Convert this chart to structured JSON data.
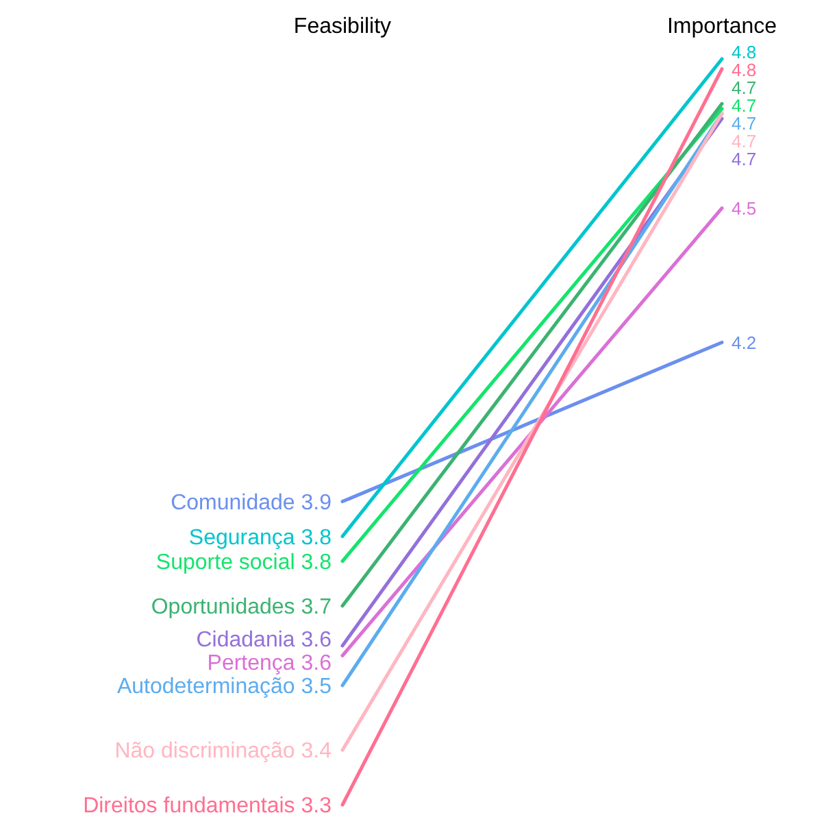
{
  "chart_data": {
    "type": "line",
    "categories": [
      "Feasibility",
      "Importance"
    ],
    "legend": false,
    "marker": "none",
    "line_style": "solid",
    "series": [
      {
        "name": "Comunidade",
        "color": "#6b8ff0",
        "values": [
          3.91,
          4.23
        ],
        "value_labels": [
          "3.9",
          "4.2"
        ]
      },
      {
        "name": "Segurança",
        "color": "#00c5cd",
        "values": [
          3.84,
          4.8
        ],
        "value_labels": [
          "3.8",
          "4.8"
        ]
      },
      {
        "name": "Suporte social",
        "color": "#14e46c",
        "values": [
          3.79,
          4.7
        ],
        "value_labels": [
          "3.8",
          "4.7"
        ]
      },
      {
        "name": "Oportunidades",
        "color": "#3cb371",
        "values": [
          3.7,
          4.71
        ],
        "value_labels": [
          "3.7",
          "4.7"
        ]
      },
      {
        "name": "Cidadania",
        "color": "#9370db",
        "values": [
          3.62,
          4.68
        ],
        "value_labels": [
          "3.6",
          "4.7"
        ]
      },
      {
        "name": "Pertença",
        "color": "#da70d6",
        "values": [
          3.6,
          4.5
        ],
        "value_labels": [
          "3.6",
          "4.5"
        ]
      },
      {
        "name": "Autodeterminação",
        "color": "#5cacee",
        "values": [
          3.54,
          4.69
        ],
        "value_labels": [
          "3.5",
          "4.7"
        ]
      },
      {
        "name": "Não discriminação",
        "color": "#ffb6c1",
        "values": [
          3.41,
          4.69
        ],
        "value_labels": [
          "3.4",
          "4.7"
        ]
      },
      {
        "name": "Direitos fundamentais",
        "color": "#ff6f91",
        "values": [
          3.3,
          4.78
        ],
        "value_labels": [
          "3.3",
          "4.8"
        ]
      }
    ]
  }
}
